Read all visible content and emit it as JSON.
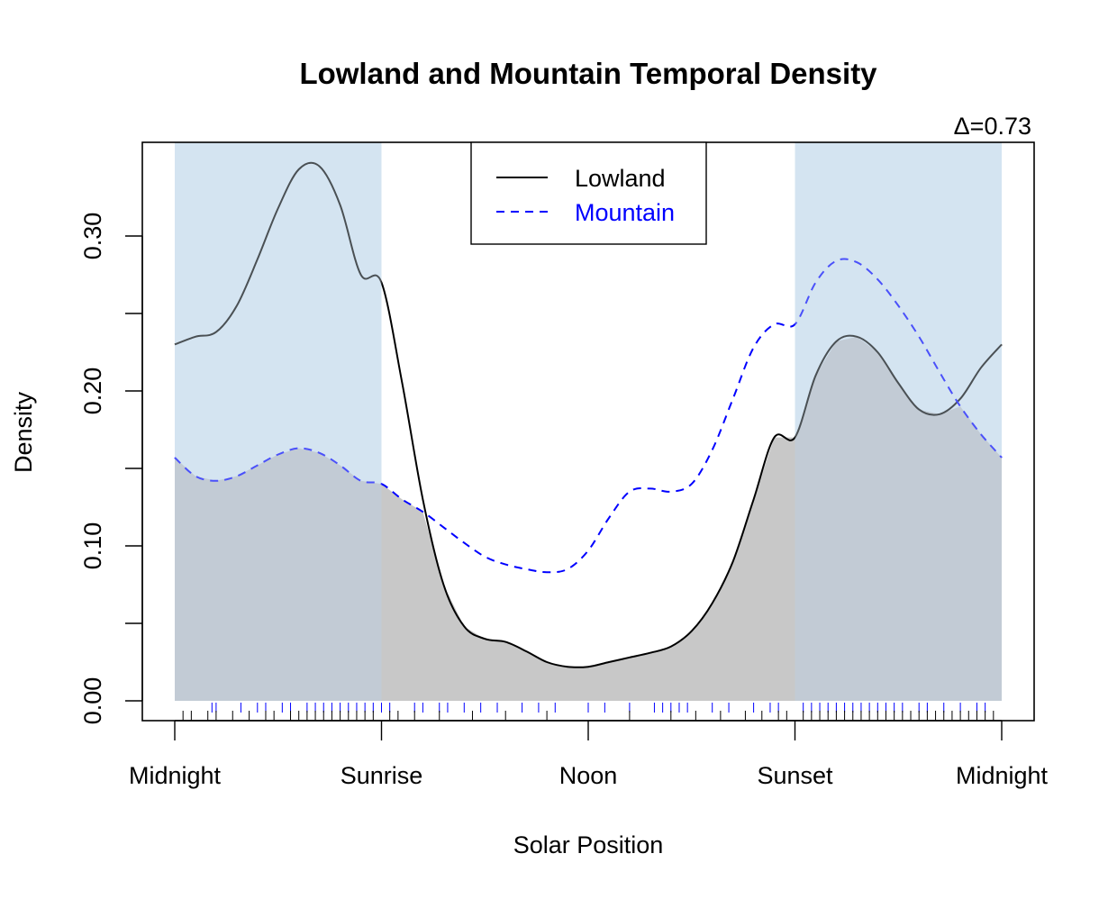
{
  "chart_data": {
    "type": "line",
    "title": "Lowland and Mountain Temporal Density",
    "xlabel": "Solar Position",
    "ylabel": "Density",
    "overlap_label": "Δ=0.73",
    "xlim": [
      0,
      1
    ],
    "ylim": [
      0,
      0.36
    ],
    "x_ticks": [
      {
        "x": 0.0,
        "label": "Midnight"
      },
      {
        "x": 0.25,
        "label": "Sunrise"
      },
      {
        "x": 0.5,
        "label": "Noon"
      },
      {
        "x": 0.75,
        "label": "Sunset"
      },
      {
        "x": 1.0,
        "label": "Midnight"
      }
    ],
    "y_ticks": [
      {
        "y": 0.0,
        "label": "0.00"
      },
      {
        "y": 0.05,
        "label": ""
      },
      {
        "y": 0.1,
        "label": "0.10"
      },
      {
        "y": 0.15,
        "label": ""
      },
      {
        "y": 0.2,
        "label": "0.20"
      },
      {
        "y": 0.25,
        "label": ""
      },
      {
        "y": 0.3,
        "label": "0.30"
      }
    ],
    "night_shading": [
      [
        0.0,
        0.25
      ],
      [
        0.75,
        1.0
      ]
    ],
    "legend_position": "top-center",
    "series": [
      {
        "name": "Lowland",
        "color": "#000000",
        "dash": "solid",
        "x": [
          0.0,
          0.025,
          0.05,
          0.075,
          0.1,
          0.125,
          0.15,
          0.175,
          0.2,
          0.225,
          0.25,
          0.275,
          0.3,
          0.325,
          0.35,
          0.375,
          0.4,
          0.425,
          0.45,
          0.475,
          0.5,
          0.525,
          0.55,
          0.575,
          0.6,
          0.625,
          0.65,
          0.675,
          0.7,
          0.725,
          0.75,
          0.775,
          0.8,
          0.825,
          0.85,
          0.875,
          0.9,
          0.925,
          0.95,
          0.975,
          1.0
        ],
        "y": [
          0.23,
          0.235,
          0.238,
          0.255,
          0.285,
          0.318,
          0.343,
          0.345,
          0.32,
          0.275,
          0.27,
          0.205,
          0.13,
          0.075,
          0.048,
          0.04,
          0.038,
          0.032,
          0.025,
          0.022,
          0.022,
          0.025,
          0.028,
          0.031,
          0.035,
          0.045,
          0.063,
          0.09,
          0.13,
          0.17,
          0.17,
          0.21,
          0.232,
          0.235,
          0.225,
          0.205,
          0.188,
          0.185,
          0.195,
          0.215,
          0.23
        ]
      },
      {
        "name": "Mountain",
        "color": "#0000ff",
        "dash": "dashed",
        "x": [
          0.0,
          0.025,
          0.05,
          0.075,
          0.1,
          0.125,
          0.15,
          0.175,
          0.2,
          0.225,
          0.25,
          0.275,
          0.3,
          0.325,
          0.35,
          0.375,
          0.4,
          0.425,
          0.45,
          0.475,
          0.5,
          0.525,
          0.55,
          0.575,
          0.6,
          0.625,
          0.65,
          0.675,
          0.7,
          0.725,
          0.75,
          0.775,
          0.8,
          0.825,
          0.85,
          0.875,
          0.9,
          0.925,
          0.95,
          0.975,
          1.0
        ],
        "y": [
          0.157,
          0.145,
          0.142,
          0.145,
          0.152,
          0.159,
          0.163,
          0.16,
          0.152,
          0.142,
          0.14,
          0.13,
          0.122,
          0.112,
          0.102,
          0.093,
          0.088,
          0.085,
          0.083,
          0.085,
          0.097,
          0.118,
          0.135,
          0.137,
          0.135,
          0.14,
          0.162,
          0.195,
          0.228,
          0.243,
          0.243,
          0.27,
          0.284,
          0.283,
          0.272,
          0.255,
          0.235,
          0.212,
          0.19,
          0.172,
          0.157
        ]
      }
    ],
    "rug": {
      "Lowland": [
        0.01,
        0.02,
        0.04,
        0.05,
        0.07,
        0.09,
        0.11,
        0.12,
        0.14,
        0.15,
        0.16,
        0.17,
        0.18,
        0.19,
        0.2,
        0.21,
        0.22,
        0.23,
        0.24,
        0.26,
        0.27,
        0.29,
        0.32,
        0.36,
        0.4,
        0.45,
        0.55,
        0.6,
        0.63,
        0.66,
        0.69,
        0.71,
        0.73,
        0.74,
        0.76,
        0.77,
        0.78,
        0.79,
        0.8,
        0.81,
        0.82,
        0.83,
        0.84,
        0.85,
        0.86,
        0.87,
        0.88,
        0.89,
        0.9,
        0.91,
        0.92,
        0.93,
        0.94,
        0.95,
        0.96,
        0.97,
        0.98,
        0.99
      ],
      "Mountain": [
        0.045,
        0.05,
        0.08,
        0.1,
        0.11,
        0.13,
        0.14,
        0.16,
        0.17,
        0.18,
        0.19,
        0.2,
        0.21,
        0.22,
        0.23,
        0.24,
        0.25,
        0.26,
        0.29,
        0.3,
        0.32,
        0.33,
        0.35,
        0.37,
        0.39,
        0.42,
        0.44,
        0.46,
        0.5,
        0.52,
        0.55,
        0.58,
        0.59,
        0.6,
        0.61,
        0.62,
        0.65,
        0.67,
        0.7,
        0.72,
        0.73,
        0.76,
        0.77,
        0.78,
        0.79,
        0.8,
        0.81,
        0.82,
        0.83,
        0.84,
        0.85,
        0.86,
        0.87,
        0.88,
        0.9,
        0.91,
        0.93,
        0.95,
        0.97,
        0.98
      ]
    },
    "colors": {
      "night_shade": "#d4e4f2",
      "overlap_fill": "#b8bec6",
      "overlap_fill_day": "#c8c8c8",
      "mountain": "#0000ff",
      "lowland": "#000000"
    }
  }
}
